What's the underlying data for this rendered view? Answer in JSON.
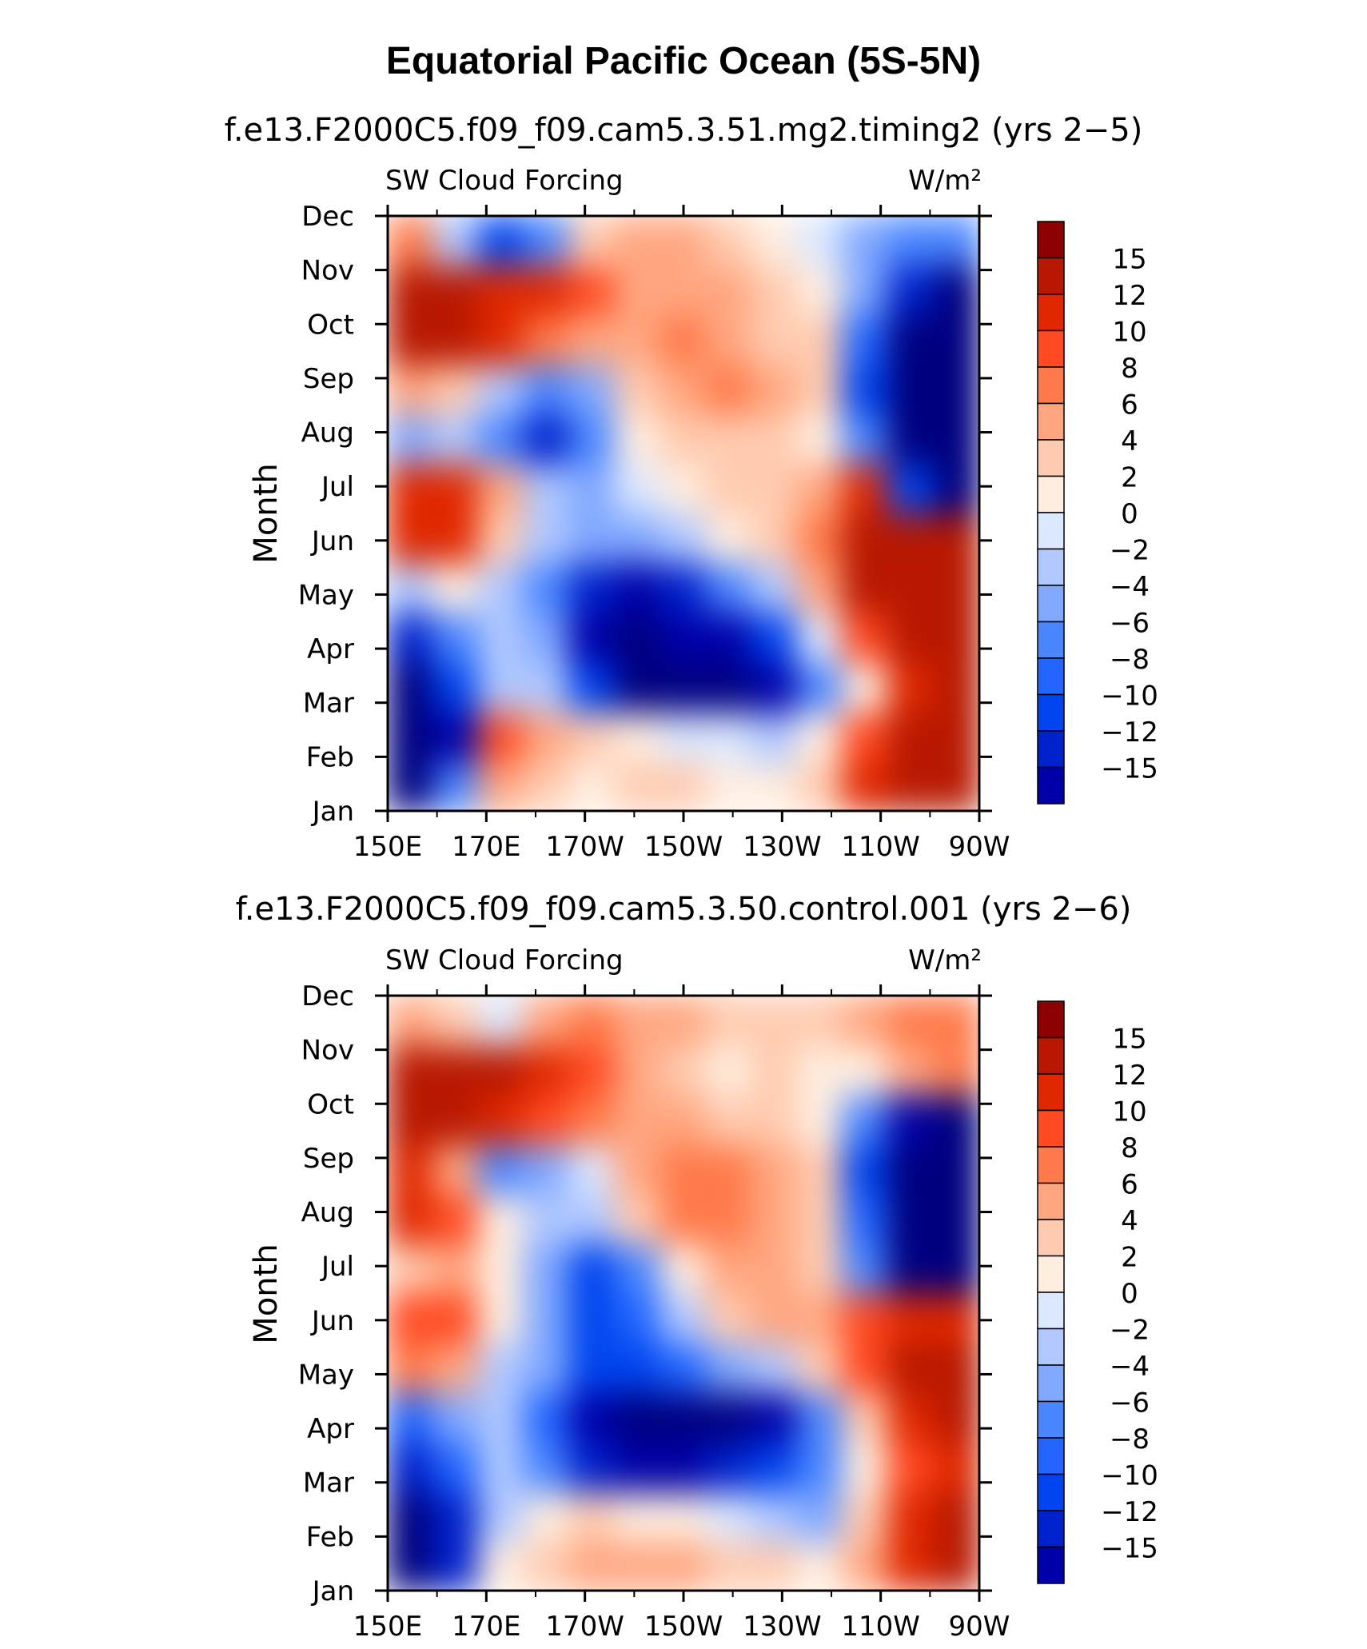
{
  "title": "Equatorial Pacific Ocean (5S-5N)",
  "colors": [
    "#00007f",
    "#0000a8",
    "#0022cc",
    "#0044ee",
    "#2266ff",
    "#4a86ff",
    "#80a8ff",
    "#b0c8ff",
    "#dce8ff",
    "#ffeee0",
    "#ffcbb0",
    "#ffa680",
    "#ff7a4a",
    "#ff4a22",
    "#e02800",
    "#b81800",
    "#8c0000"
  ],
  "chart_data": [
    {
      "type": "heatmap",
      "panel_title": "f.e13.F2000C5.f09_f09.cam5.3.51.mg2.timing2 (yrs 2−5)",
      "left_label": "SW Cloud Forcing",
      "right_label": "W/m²",
      "ylabel": "Month",
      "x": [
        "150E",
        "170E",
        "170W",
        "150W",
        "130W",
        "110W",
        "90W"
      ],
      "y": [
        "Jan",
        "Feb",
        "Mar",
        "Apr",
        "May",
        "Jun",
        "Jul",
        "Aug",
        "Sep",
        "Oct",
        "Nov",
        "Dec"
      ],
      "colorbar_levels": [
        "15",
        "12",
        "10",
        "8",
        "6",
        "4",
        "2",
        "0",
        "−2",
        "−4",
        "−6",
        "−8",
        "−10",
        "−12",
        "−15"
      ],
      "values": [
        [
          -16,
          -6,
          6,
          4,
          3,
          4,
          4,
          3,
          2,
          4,
          12,
          17,
          17
        ],
        [
          -16,
          -14,
          10,
          6,
          4,
          2,
          1,
          0,
          -1,
          2,
          10,
          17,
          17
        ],
        [
          -16,
          -10,
          -1,
          -2,
          -10,
          -16,
          -17,
          -17,
          -15,
          -6,
          3,
          14,
          16
        ],
        [
          -12,
          -6,
          -1,
          -3,
          -14,
          -17,
          -15,
          -14,
          -9,
          1,
          10,
          16,
          17
        ],
        [
          -2,
          2,
          -1,
          -5,
          -12,
          -14,
          -12,
          -6,
          -2,
          6,
          15,
          17,
          17
        ],
        [
          12,
          14,
          4,
          -2,
          -4,
          -3,
          -1,
          2,
          4,
          8,
          15,
          15,
          15
        ],
        [
          14,
          14,
          6,
          -2,
          -4,
          0,
          2,
          4,
          4,
          6,
          12,
          -10,
          -16
        ],
        [
          -4,
          -2,
          -6,
          -12,
          -6,
          2,
          4,
          4,
          4,
          2,
          -6,
          -17,
          -17
        ],
        [
          6,
          4,
          -2,
          -6,
          -3,
          4,
          6,
          9,
          6,
          4,
          -10,
          -17,
          -17
        ],
        [
          16,
          16,
          12,
          8,
          6,
          6,
          8,
          7,
          5,
          4,
          -8,
          -17,
          -17
        ],
        [
          17,
          16,
          14,
          12,
          10,
          6,
          6,
          6,
          4,
          3,
          -4,
          -12,
          -16
        ],
        [
          8,
          -2,
          -10,
          -6,
          4,
          6,
          6,
          4,
          2,
          1,
          -4,
          -6,
          -6
        ]
      ]
    },
    {
      "type": "heatmap",
      "panel_title": "f.e13.F2000C5.f09_f09.cam5.3.50.control.001 (yrs 2−6)",
      "left_label": "SW Cloud Forcing",
      "right_label": "W/m²",
      "ylabel": "Month",
      "x": [
        "150E",
        "170E",
        "170W",
        "150W",
        "130W",
        "110W",
        "90W"
      ],
      "y": [
        "Jan",
        "Feb",
        "Mar",
        "Apr",
        "May",
        "Jun",
        "Jul",
        "Aug",
        "Sep",
        "Oct",
        "Nov",
        "Dec"
      ],
      "colorbar_levels": [
        "15",
        "12",
        "10",
        "8",
        "6",
        "4",
        "2",
        "0",
        "−2",
        "−4",
        "−6",
        "−8",
        "−10",
        "−12",
        "−15"
      ],
      "values": [
        [
          -16,
          -12,
          2,
          4,
          6,
          6,
          6,
          4,
          4,
          2,
          6,
          14,
          16
        ],
        [
          -16,
          -12,
          -2,
          2,
          4,
          2,
          2,
          0,
          -2,
          -4,
          4,
          14,
          16
        ],
        [
          -12,
          -8,
          -2,
          -6,
          -12,
          -14,
          -14,
          -12,
          -10,
          -6,
          2,
          10,
          12
        ],
        [
          -8,
          -4,
          -2,
          -8,
          -14,
          -17,
          -17,
          -17,
          -14,
          -6,
          4,
          14,
          16
        ],
        [
          8,
          6,
          -1,
          -4,
          -10,
          -10,
          -8,
          -4,
          -2,
          4,
          10,
          16,
          16
        ],
        [
          10,
          10,
          2,
          -4,
          -10,
          -8,
          -2,
          4,
          6,
          6,
          10,
          12,
          12
        ],
        [
          4,
          6,
          2,
          -4,
          -10,
          -6,
          2,
          6,
          6,
          4,
          -6,
          -16,
          -17
        ],
        [
          14,
          10,
          2,
          -2,
          -2,
          4,
          8,
          8,
          6,
          4,
          -8,
          -17,
          -17
        ],
        [
          12,
          6,
          -6,
          -4,
          0,
          6,
          8,
          8,
          6,
          4,
          -10,
          -17,
          -17
        ],
        [
          16,
          16,
          14,
          10,
          8,
          6,
          6,
          4,
          4,
          2,
          -6,
          -14,
          -17
        ],
        [
          17,
          16,
          15,
          14,
          10,
          6,
          4,
          2,
          4,
          3,
          2,
          6,
          8
        ],
        [
          6,
          4,
          0,
          6,
          8,
          6,
          6,
          4,
          4,
          4,
          6,
          8,
          8
        ]
      ]
    }
  ]
}
